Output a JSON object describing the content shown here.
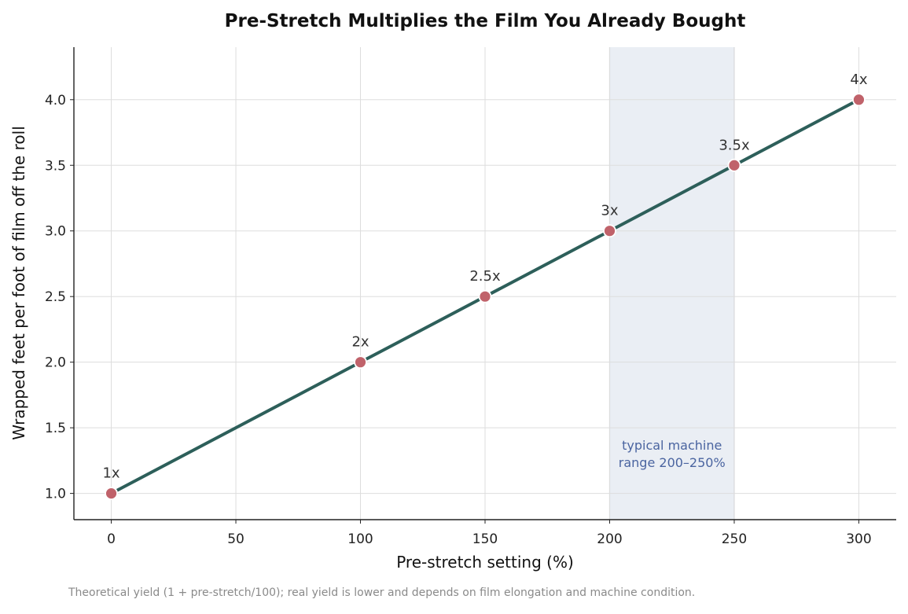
{
  "chart_data": {
    "type": "line",
    "title": "Pre-Stretch Multiplies the Film You Already Bought",
    "xlabel": "Pre-stretch setting (%)",
    "ylabel": "Wrapped feet per foot of film off the roll",
    "xlim": [
      -15,
      315
    ],
    "ylim": [
      0.8,
      4.4
    ],
    "xticks": [
      0,
      50,
      100,
      150,
      200,
      250,
      300
    ],
    "yticks": [
      "1.0",
      "1.5",
      "2.0",
      "2.5",
      "3.0",
      "3.5",
      "4.0"
    ],
    "grid": true,
    "series": [
      {
        "x": [
          0,
          100,
          150,
          200,
          250,
          300
        ],
        "y": [
          1.0,
          2.0,
          2.5,
          3.0,
          3.5,
          4.0
        ],
        "labels": [
          "1x",
          "2x",
          "2.5x",
          "3x",
          "3.5x",
          "4x"
        ]
      }
    ],
    "band": {
      "x_range": [
        200,
        250
      ],
      "label_line1": "typical machine",
      "label_line2": "range 200–250%"
    },
    "colors": {
      "line": "#2d5f5a",
      "marker": "#c0626a",
      "band_fill": "#eaeef4",
      "band_text": "#4a64a0",
      "grid": "#dddddd"
    }
  },
  "caption": "Theoretical yield (1 + pre-stretch/100); real yield is lower and depends on film elongation and machine condition."
}
